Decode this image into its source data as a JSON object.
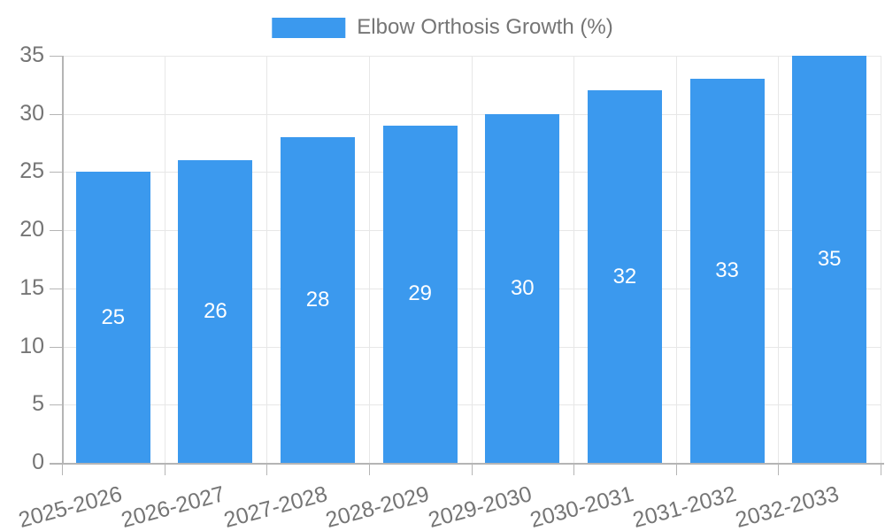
{
  "chart_data": {
    "type": "bar",
    "title": "Elbow Orthosis Growth (%)",
    "categories": [
      "2025-2026",
      "2026-2027",
      "2027-2028",
      "2028-2029",
      "2029-2030",
      "2030-2031",
      "2031-2032",
      "2032-2033"
    ],
    "values": [
      25,
      26,
      28,
      29,
      30,
      32,
      33,
      35
    ],
    "bar_value_labels": [
      "25",
      "26",
      "28",
      "29",
      "30",
      "32",
      "33",
      "35"
    ],
    "xlabel": "",
    "ylabel": "",
    "ylim": [
      0,
      35
    ],
    "yticks": [
      0,
      5,
      10,
      15,
      20,
      25,
      30,
      35
    ],
    "ytick_labels": [
      "0",
      "5",
      "10",
      "15",
      "20",
      "25",
      "30",
      "35"
    ],
    "grid": "on",
    "legend_position": "top-center"
  },
  "colors": {
    "bar": "#3B99EE",
    "value_label": "#ffffff",
    "axis": "#b5b5b5",
    "grid": "#e7e7e7",
    "text": "#757575",
    "background": "#ffffff"
  }
}
